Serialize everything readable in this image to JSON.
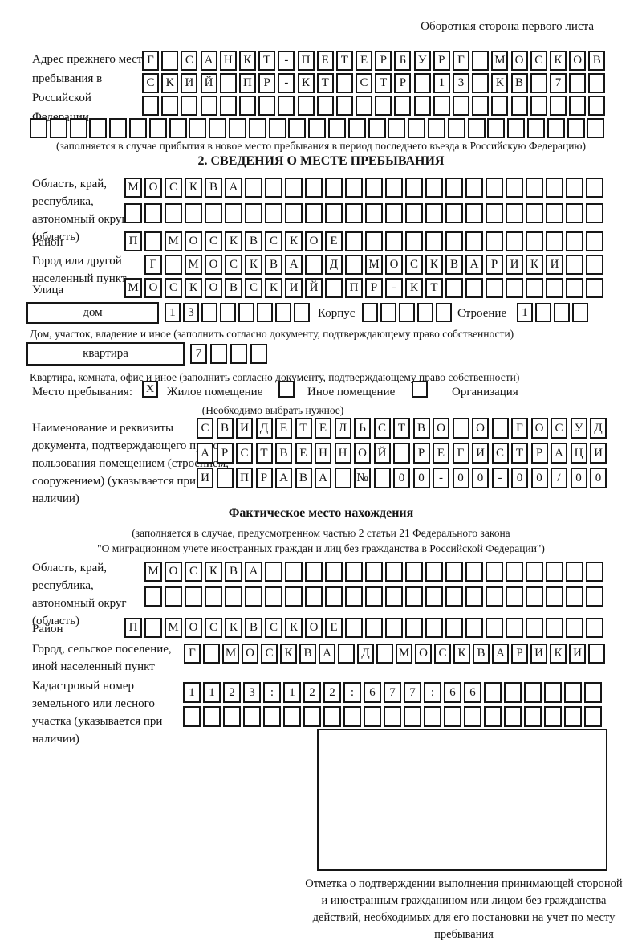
{
  "header": {
    "note": "Оборотная сторона первого листа"
  },
  "prev_address": {
    "label": "Адрес прежнего места пребывания в Российской Федерации",
    "row1": {
      "count": 24,
      "text": "Г САНКТ-ПЕТЕРБУРГ МОСКОВ"
    },
    "row2": {
      "count": 24,
      "text": "СКИЙ ПР-КТ СТР 13 КВ 7"
    },
    "row3": {
      "count": 24,
      "text": ""
    },
    "row4": {
      "count": 29,
      "text": ""
    },
    "caption": "(заполняется в случае прибытия в новое место пребывания в период последнего въезда в Российскую Федерацию)"
  },
  "section2": {
    "title": "2. СВЕДЕНИЯ О МЕСТЕ ПРЕБЫВАНИЯ",
    "region": {
      "label": "Область, край, республика, автономный округ (область)",
      "row1": {
        "count": 24,
        "text": "МОСКВА"
      },
      "row2": {
        "count": 24,
        "text": ""
      }
    },
    "district": {
      "label": "Район",
      "row": {
        "count": 24,
        "text": "П МОСКВСКОЕ"
      }
    },
    "city": {
      "label": "Город или другой населенный пункт",
      "row": {
        "count": 23,
        "text": "Г МОСКВА Д МОСКВАРИКИ"
      }
    },
    "street": {
      "label": "Улица",
      "row": {
        "count": 24,
        "text": "МОСКОВСКИЙ ПР-КТ"
      }
    },
    "house": {
      "field_label": "дом",
      "number": {
        "count": 8,
        "text": "13"
      },
      "korpus_label": "Корпус",
      "korpus": {
        "count": 5,
        "text": ""
      },
      "stroenie_label": "Строение",
      "stroenie": {
        "count": 4,
        "text": "1"
      },
      "caption": "Дом, участок, владение и иное (заполнить согласно документу, подтверждающему право собственности)"
    },
    "apartment": {
      "field_label": "квартира",
      "number": {
        "count": 4,
        "text": "7"
      },
      "caption": "Квартира, комната, офис и иное (заполнить согласно документу, подтверждающему право собственности)"
    },
    "stay": {
      "label": "Место пребывания:",
      "options": [
        {
          "label": "Жилое помещение",
          "mark": "X"
        },
        {
          "label": "Иное помещение",
          "mark": ""
        },
        {
          "label": "Организация",
          "mark": ""
        }
      ],
      "caption": "(Необходимо выбрать нужное)"
    },
    "doc": {
      "label": "Наименование и реквизиты документа, подтверждающего право пользования помещением (строением, сооружением) (указывается при наличии)",
      "row1": {
        "count": 21,
        "text": "СВИДЕТЕЛЬСТВО О ГОСУД"
      },
      "row2": {
        "count": 21,
        "text": "АРСТВЕННОЙ РЕГИСТРАЦИ"
      },
      "row3": {
        "count": 21,
        "text": "И ПРАВА № 00-00-00/000"
      }
    }
  },
  "actual_location": {
    "title": "Фактическое место нахождения",
    "caption1": "(заполняется в случае, предусмотренном частью 2 статьи 21 Федерального закона",
    "caption2": "\"О миграционном учете иностранных граждан и лиц без гражданства в Российской Федерации\")",
    "region": {
      "label": "Область, край, республика, автономный округ (область)",
      "row1": {
        "count": 23,
        "text": "МОСКВА"
      },
      "row2": {
        "count": 23,
        "text": ""
      }
    },
    "district": {
      "label": "Район",
      "row": {
        "count": 24,
        "text": "П МОСКВСКОЕ"
      }
    },
    "city": {
      "label": "Город, сельское поселение, иной населенный пункт",
      "row": {
        "count": 22,
        "text": "Г МОСКВА Д МОСКВАРИКИ"
      }
    },
    "cadastral": {
      "label": "Кадастровый номер земельного или лесного участка (указывается при наличии)",
      "row1": {
        "count": 21,
        "text": "1123:122:677:66"
      },
      "row2": {
        "count": 21,
        "text": ""
      }
    }
  },
  "stamp": {
    "caption": "Отметка о подтверждении выполнения принимающей стороной и иностранным гражданином или лицом без гражданства действий, необходимых для его постановки на учет по месту пребывания"
  }
}
